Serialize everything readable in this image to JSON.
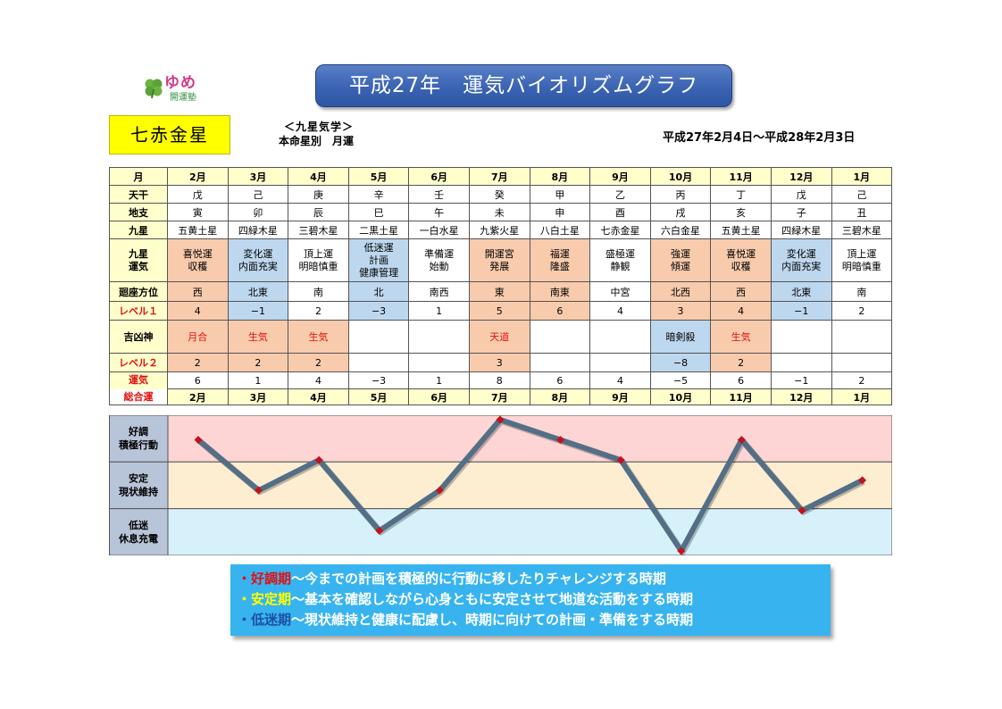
{
  "logo": {
    "top": "ゆめ",
    "bottom": "開運塾",
    "icon": "clover-icon",
    "colors": {
      "clover": "#5aa33a",
      "text": "#d23b8a"
    }
  },
  "title": "平成27年　運気バイオリズムグラフ",
  "star": "七赤金星",
  "subtitle1": "＜九星気学＞",
  "subtitle2": "本命星別　月運",
  "period": "平成27年2月4日～平成28年2月3日",
  "table": {
    "row_labels": {
      "month": "月",
      "kanshi_ten": "天干",
      "kanshi_chi": "地支",
      "kyusei": "九星",
      "kyusei_unki": [
        "九星",
        "運気"
      ],
      "kaiza": "廻座方位",
      "level1": "レベル１",
      "kikkyo": "吉凶神",
      "level2": "レベル２",
      "sogo": [
        "運気",
        "総合運"
      ]
    },
    "months": [
      "2月",
      "3月",
      "4月",
      "5月",
      "6月",
      "7月",
      "8月",
      "9月",
      "10月",
      "11月",
      "12月",
      "1月"
    ],
    "tenkan": [
      "戊",
      "己",
      "庚",
      "辛",
      "壬",
      "癸",
      "甲",
      "乙",
      "丙",
      "丁",
      "戊",
      "己"
    ],
    "chishi": [
      "寅",
      "卯",
      "辰",
      "巳",
      "午",
      "未",
      "申",
      "酉",
      "戌",
      "亥",
      "子",
      "丑"
    ],
    "kyusei": [
      "五黄土星",
      "四緑木星",
      "三碧木星",
      "二黒土星",
      "一白水星",
      "九紫火星",
      "八白土星",
      "七赤金星",
      "六白金星",
      "五黄土星",
      "四緑木星",
      "三碧木星"
    ],
    "unki": [
      [
        "喜悦運",
        "収穫"
      ],
      [
        "変化運",
        "内面充実"
      ],
      [
        "頂上運",
        "明暗慎重"
      ],
      [
        "低迷運",
        "計画",
        "健康管理"
      ],
      [
        "準備運",
        "始動"
      ],
      [
        "開運宮",
        "発展"
      ],
      [
        "福運",
        "隆盛"
      ],
      [
        "盛極運",
        "静観"
      ],
      [
        "強運",
        "傾運"
      ],
      [
        "喜悦運",
        "収穫"
      ],
      [
        "変化運",
        "内面充実"
      ],
      [
        "頂上運",
        "明暗慎重"
      ]
    ],
    "kaiza": [
      "西",
      "北東",
      "南",
      "北",
      "南西",
      "東",
      "南東",
      "中宮",
      "北西",
      "西",
      "北東",
      "南"
    ],
    "level1": [
      "4",
      "−1",
      "2",
      "−3",
      "1",
      "5",
      "6",
      "4",
      "3",
      "4",
      "−1",
      "2"
    ],
    "kikkyo": [
      "月合",
      "生気",
      "生気",
      "",
      "",
      "天道",
      "",
      "",
      "暗剣殺",
      "生気",
      "",
      ""
    ],
    "level2": [
      "2",
      "2",
      "2",
      "",
      "",
      "3",
      "",
      "",
      "−8",
      "2",
      "",
      ""
    ],
    "sogo": [
      "6",
      "1",
      "4",
      "−3",
      "1",
      "8",
      "6",
      "4",
      "−5",
      "6",
      "−1",
      "2"
    ],
    "colors": {
      "orange": "#f8cbad",
      "blue": "#bdd7ee",
      "header": "#ffffcc",
      "red": "#e01010"
    }
  },
  "chart_data": {
    "type": "line",
    "x": [
      "2月",
      "3月",
      "4月",
      "5月",
      "6月",
      "7月",
      "8月",
      "9月",
      "10月",
      "11月",
      "12月",
      "1月"
    ],
    "values": [
      6,
      1,
      4,
      -3,
      1,
      8,
      6,
      4,
      -5,
      6,
      -1,
      2
    ],
    "ylim": [
      -5,
      8
    ],
    "bands": [
      {
        "label": [
          "好調",
          "積極行動"
        ],
        "color": "#fcd5d4"
      },
      {
        "label": [
          "安定",
          "現状維持"
        ],
        "color": "#fdeed2"
      },
      {
        "label": [
          "低迷",
          "休息充電"
        ],
        "color": "#d6f1fa"
      }
    ],
    "line_color": "#536f86",
    "marker_color": "#c4121a"
  },
  "legend": [
    {
      "key": "・好調期",
      "text": "～今までの計画を積極的に行動に移したりチャレンジする時期"
    },
    {
      "key": "・安定期",
      "text": "～基本を確認しながら心身ともに安定させて地道な活動をする時期"
    },
    {
      "key": "・低迷期",
      "text": "～現状維持と健康に配慮し、時期に向けての計画・準備をする時期"
    }
  ]
}
